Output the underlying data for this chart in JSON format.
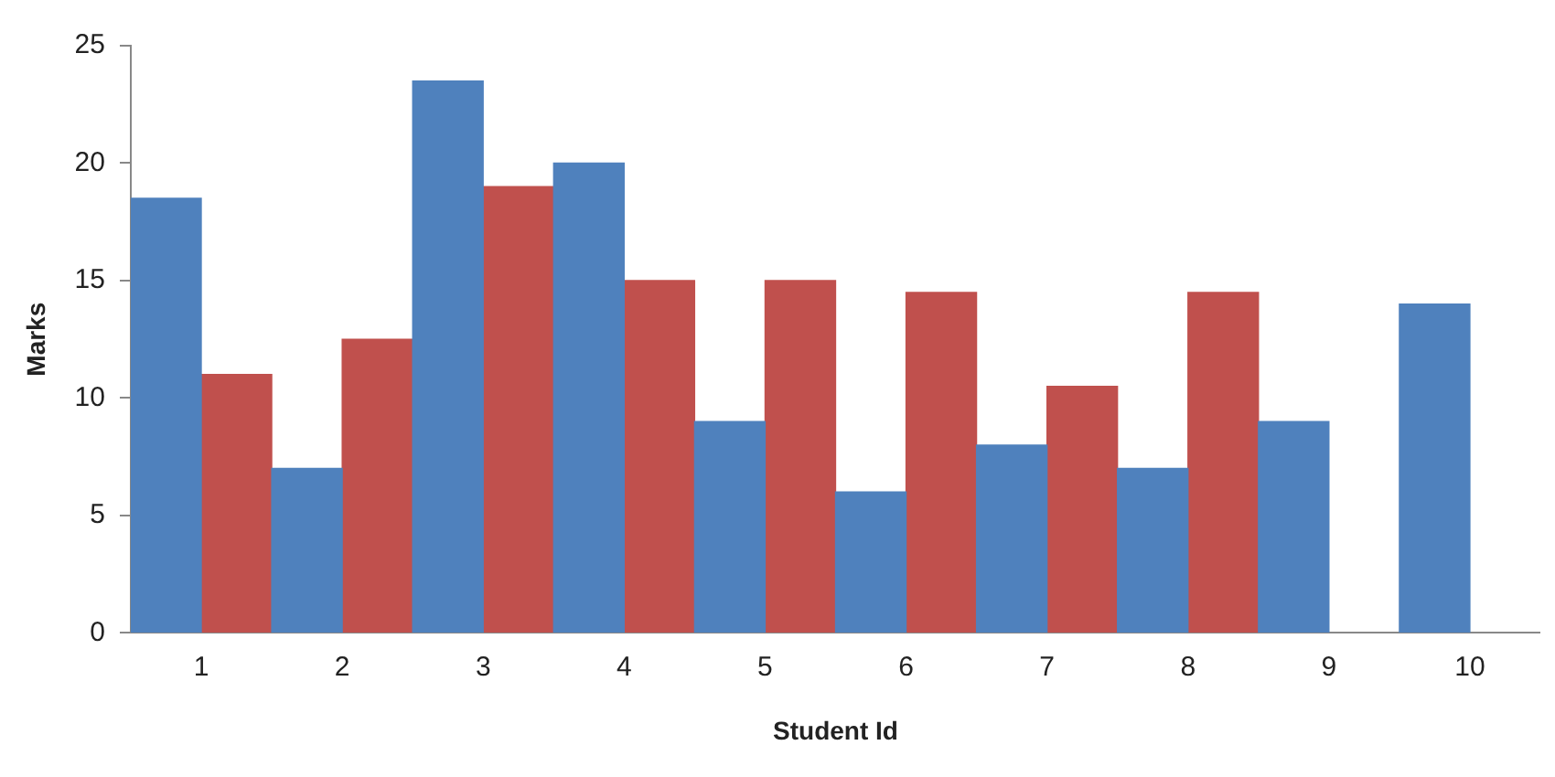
{
  "chart_data": {
    "type": "bar",
    "xlabel": "Student Id",
    "ylabel": "Marks",
    "categories": [
      "1",
      "2",
      "3",
      "4",
      "5",
      "6",
      "7",
      "8",
      "9",
      "10"
    ],
    "series": [
      {
        "color": "#4f81bd",
        "values": [
          18.5,
          7,
          23.5,
          20,
          9,
          6,
          8,
          7,
          9,
          14
        ]
      },
      {
        "color": "#c0504d",
        "values": [
          11,
          12.5,
          19,
          15,
          15,
          14.5,
          10.5,
          14.5,
          null,
          null
        ]
      }
    ],
    "ylim": [
      0,
      25
    ],
    "yticks": [
      0,
      5,
      10,
      15,
      20,
      25
    ],
    "grid": false,
    "legend": false
  }
}
